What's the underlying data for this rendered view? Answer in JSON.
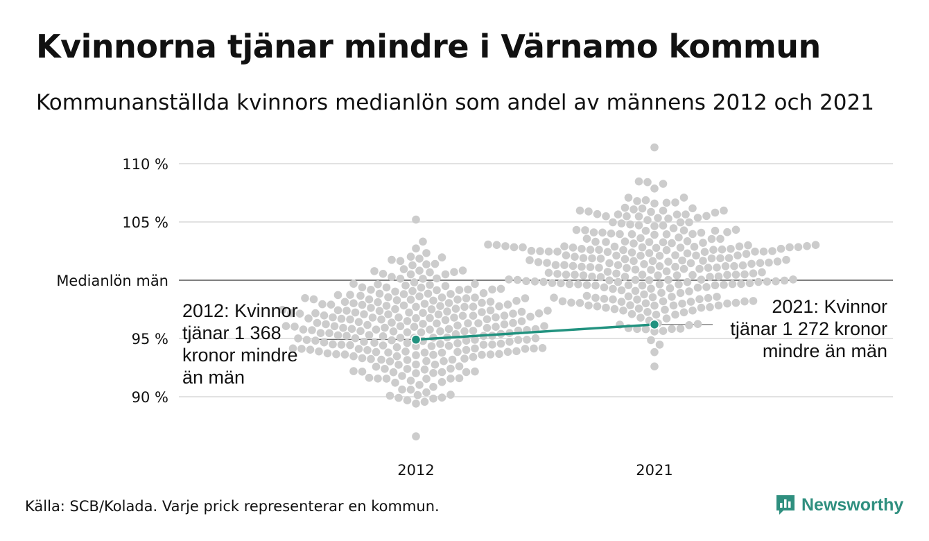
{
  "title": "Kvinnorna tjänar mindre i Värnamo kommun",
  "subtitle": "Kommunanställda kvinnors medianlön som andel av männens 2012 och 2021",
  "source": "Källa: SCB/Kolada. Varje prick representerar en kommun.",
  "logo": {
    "text": "Newsworthy",
    "color": "#2f8f7f"
  },
  "chart_data": {
    "type": "scatter",
    "categories": [
      "2012",
      "2021"
    ],
    "ylim": [
      85.8,
      111.8
    ],
    "yticks": [
      90,
      95,
      105,
      110
    ],
    "ytick_labels": [
      "90 %",
      "95 %",
      "105 %",
      "110 %"
    ],
    "reference_line": {
      "value": 100,
      "label": "Medianlön män"
    },
    "colors": {
      "dots": "#cccccc",
      "highlight": "#21927f",
      "grid": "#e2e2e2",
      "reference": "#333333"
    },
    "highlight": [
      {
        "category": "2012",
        "value": 94.9
      },
      {
        "category": "2021",
        "value": 96.2
      }
    ],
    "annotations": [
      {
        "category": "2012",
        "lines": [
          "2012: Kvinnor",
          "tjänar 1 368",
          "kronor mindre",
          "än män"
        ]
      },
      {
        "category": "2021",
        "lines": [
          "2021: Kvinnor",
          "tjänar 1 272 kronor",
          "mindre än män"
        ]
      }
    ],
    "distribution": [
      {
        "category": "2012",
        "center": 96.0,
        "spread": 3.0,
        "min": 86.6,
        "max": 105.2,
        "count": 290
      },
      {
        "category": "2021",
        "center": 101.5,
        "spread": 3.0,
        "min": 92.6,
        "max": 111.4,
        "count": 290
      }
    ]
  }
}
